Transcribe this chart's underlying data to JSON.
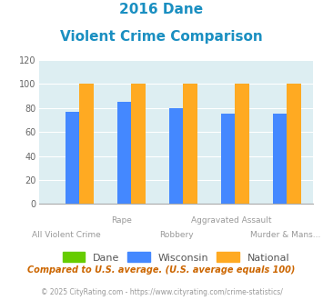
{
  "title_line1": "2016 Dane",
  "title_line2": "Violent Crime Comparison",
  "title_color": "#1a8fc1",
  "categories": [
    "All Violent Crime",
    "Rape",
    "Robbery",
    "Aggravated Assault",
    "Murder & Mans..."
  ],
  "category_labels_top": [
    "",
    "Rape",
    "",
    "Aggravated Assault",
    ""
  ],
  "category_labels_bottom": [
    "All Violent Crime",
    "",
    "Robbery",
    "",
    "Murder & Mans..."
  ],
  "dane_values": [
    0,
    0,
    0,
    0,
    0
  ],
  "wisconsin_values": [
    77,
    85,
    80,
    75,
    75
  ],
  "national_values": [
    100,
    100,
    100,
    100,
    100
  ],
  "dane_color": "#66cc00",
  "wisconsin_color": "#4488ff",
  "national_color": "#ffaa22",
  "bg_color": "#ddeef2",
  "ylim": [
    0,
    120
  ],
  "yticks": [
    0,
    20,
    40,
    60,
    80,
    100,
    120
  ],
  "legend_labels": [
    "Dane",
    "Wisconsin",
    "National"
  ],
  "footnote1": "Compared to U.S. average. (U.S. average equals 100)",
  "footnote2": "© 2025 CityRating.com - https://www.cityrating.com/crime-statistics/",
  "footnote1_color": "#cc6600",
  "footnote2_color": "#999999"
}
